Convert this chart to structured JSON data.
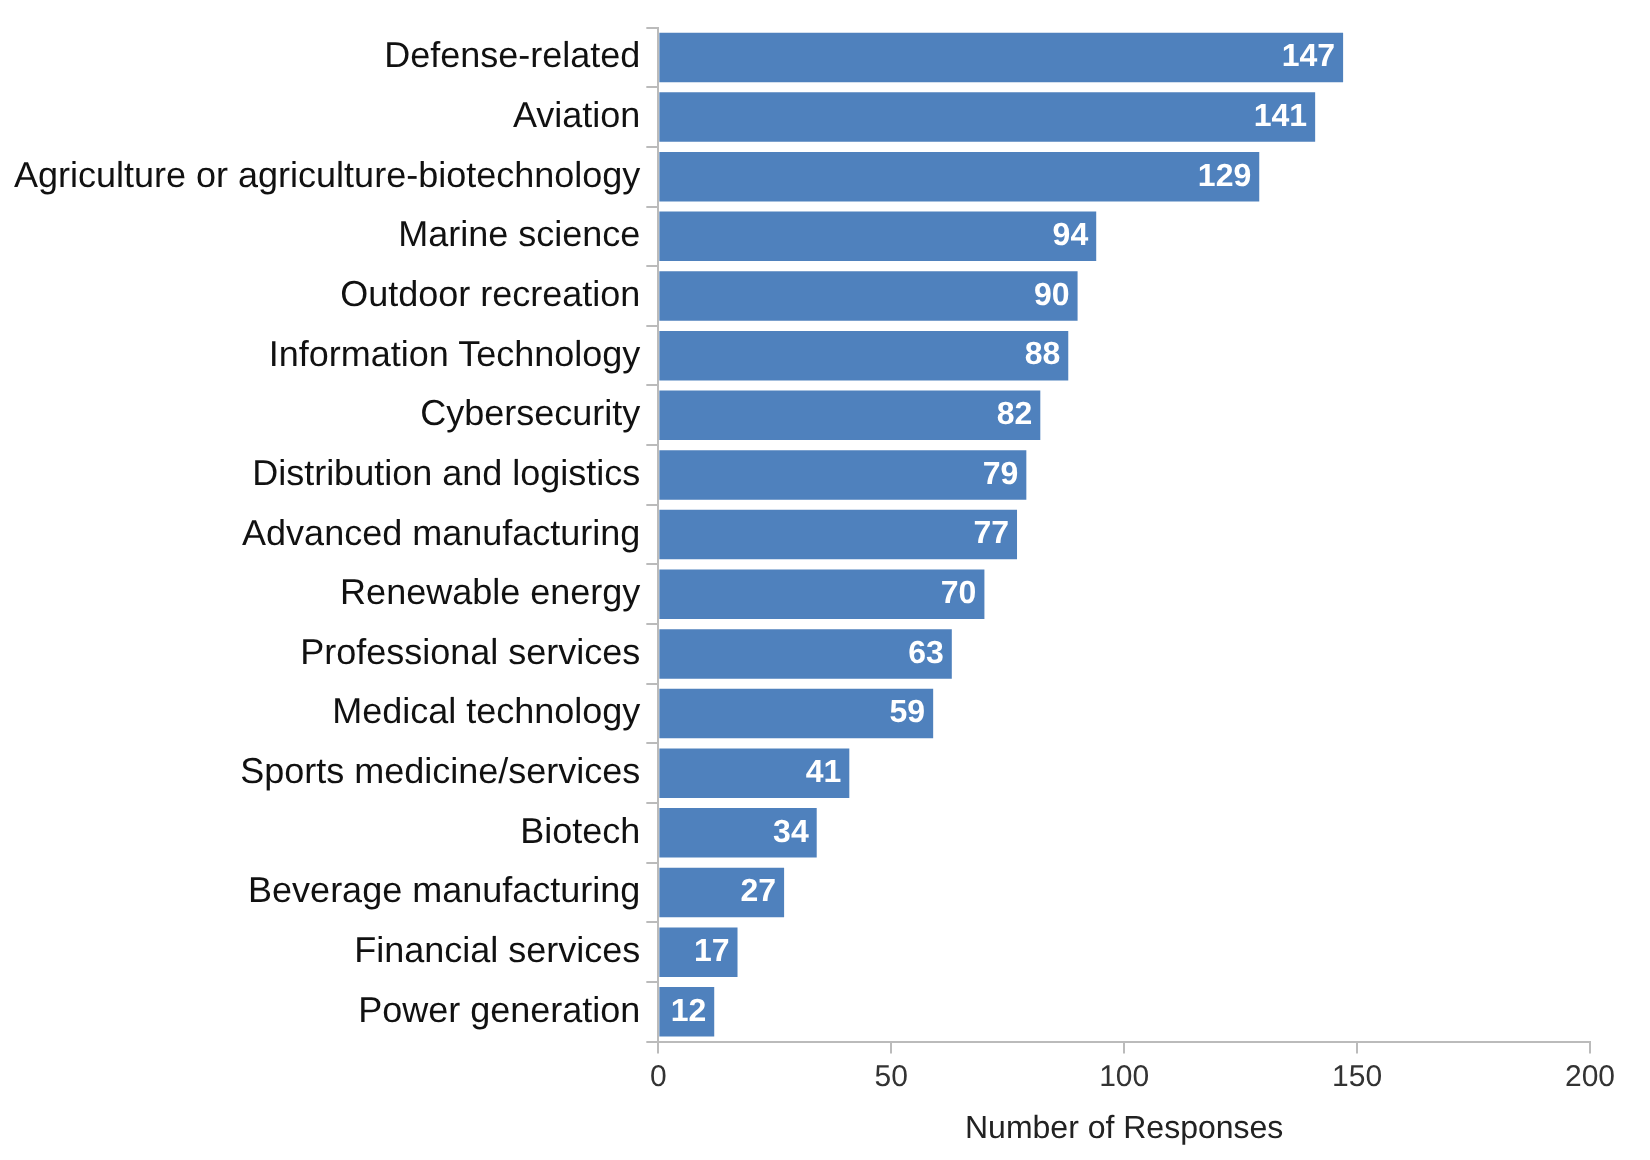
{
  "chart_data": {
    "type": "bar",
    "orientation": "horizontal",
    "xlabel": "Number of Responses",
    "categories": [
      "Defense-related",
      "Aviation",
      "Agriculture or agriculture-biotechnology",
      "Marine science",
      "Outdoor recreation",
      "Information Technology",
      "Cybersecurity",
      "Distribution and logistics",
      "Advanced manufacturing",
      "Renewable energy",
      "Professional services",
      "Medical technology",
      "Sports medicine/services",
      "Biotech",
      "Beverage manufacturing",
      "Financial services",
      "Power generation"
    ],
    "values": [
      147,
      141,
      129,
      94,
      90,
      88,
      82,
      79,
      77,
      70,
      63,
      59,
      41,
      34,
      27,
      17,
      12
    ],
    "color": "#4f81bd",
    "xlim": [
      0,
      200
    ],
    "xticks": [
      0,
      50,
      100,
      150,
      200
    ],
    "grid": false,
    "legend": false,
    "data_labels": true
  }
}
